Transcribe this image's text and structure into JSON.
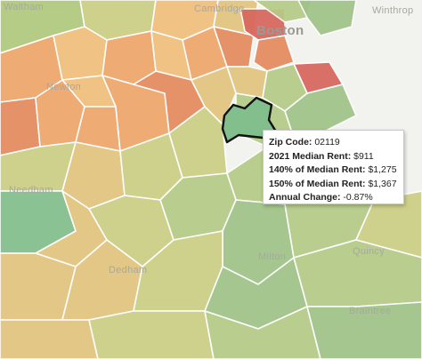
{
  "map": {
    "place_labels": {
      "waltham": "Waltham",
      "cambridge": "Cambridge",
      "winthrop": "Winthrop",
      "boston": "Boston",
      "newton": "Newton",
      "needham": "Needham",
      "dedham": "Dedham",
      "milton": "Milton",
      "quincy": "Quincy",
      "braintree": "Braintree"
    },
    "colors": {
      "water": "#f2f2ef",
      "red": "#d7655c",
      "orange_red": "#e48a5e",
      "orange": "#eea56a",
      "light_orange": "#f0bf7c",
      "tan": "#e2c47f",
      "yellow_green": "#cccf83",
      "light_green": "#b5cc86",
      "green": "#9fc387",
      "teal_green": "#82bf8d",
      "highlight_stroke": "#111111"
    }
  },
  "tooltip": {
    "zip": {
      "label": "Zip Code:",
      "value": "02119"
    },
    "rent_2021": {
      "label": "2021 Median Rent:",
      "value": "$911"
    },
    "rent_140": {
      "label": "140% of Median Rent:",
      "value": "$1,275"
    },
    "rent_150": {
      "label": "150% of Median Rent:",
      "value": "$1,367"
    },
    "annual_change": {
      "label": "Annual Change:",
      "value": "-0.87%"
    }
  }
}
